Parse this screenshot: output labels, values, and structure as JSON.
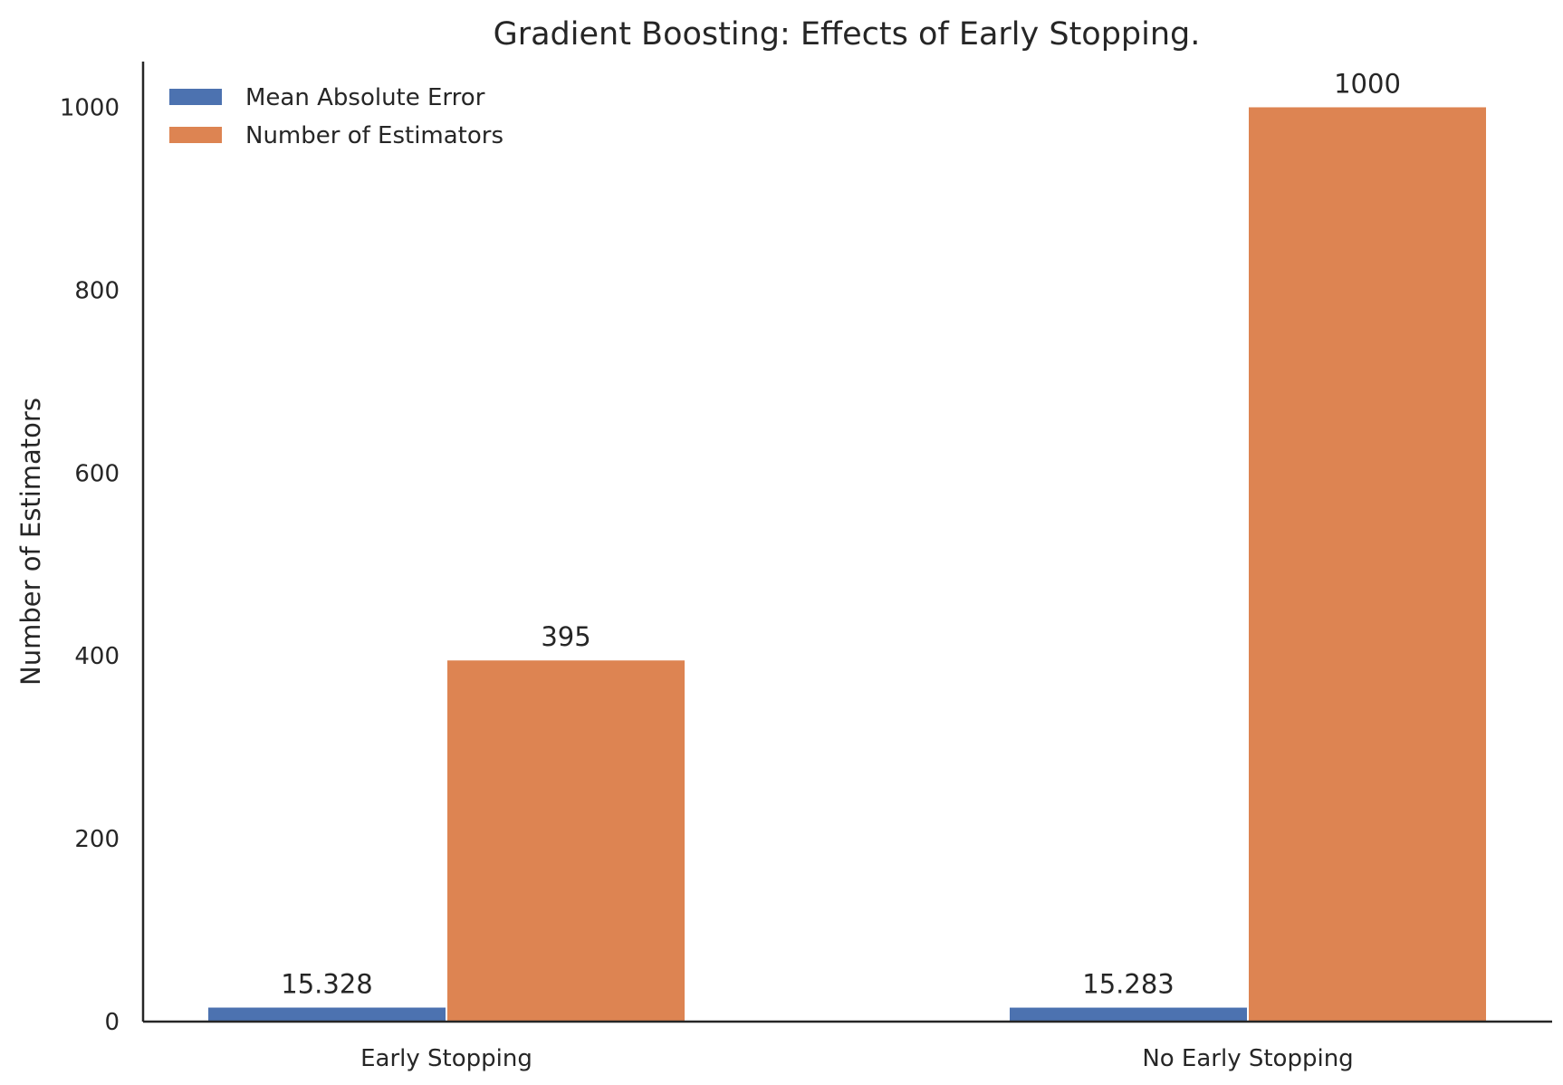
{
  "chart_data": {
    "type": "bar",
    "title": "Gradient Boosting: Effects of Early Stopping.",
    "xlabel": "",
    "ylabel": "Number of Estimators",
    "categories": [
      "Early Stopping",
      "No Early Stopping"
    ],
    "series": [
      {
        "name": "Mean Absolute Error",
        "values": [
          15.328,
          15.283
        ],
        "labels": [
          "15.328",
          "15.283"
        ],
        "color": "#4c72b0"
      },
      {
        "name": "Number of Estimators",
        "values": [
          395,
          1000
        ],
        "labels": [
          "395",
          "1000"
        ],
        "color": "#dd8452"
      }
    ],
    "ylim": [
      0,
      1050
    ],
    "yticks": [
      0,
      200,
      400,
      600,
      800,
      1000
    ],
    "grid": false,
    "legend_position": "top-left"
  }
}
